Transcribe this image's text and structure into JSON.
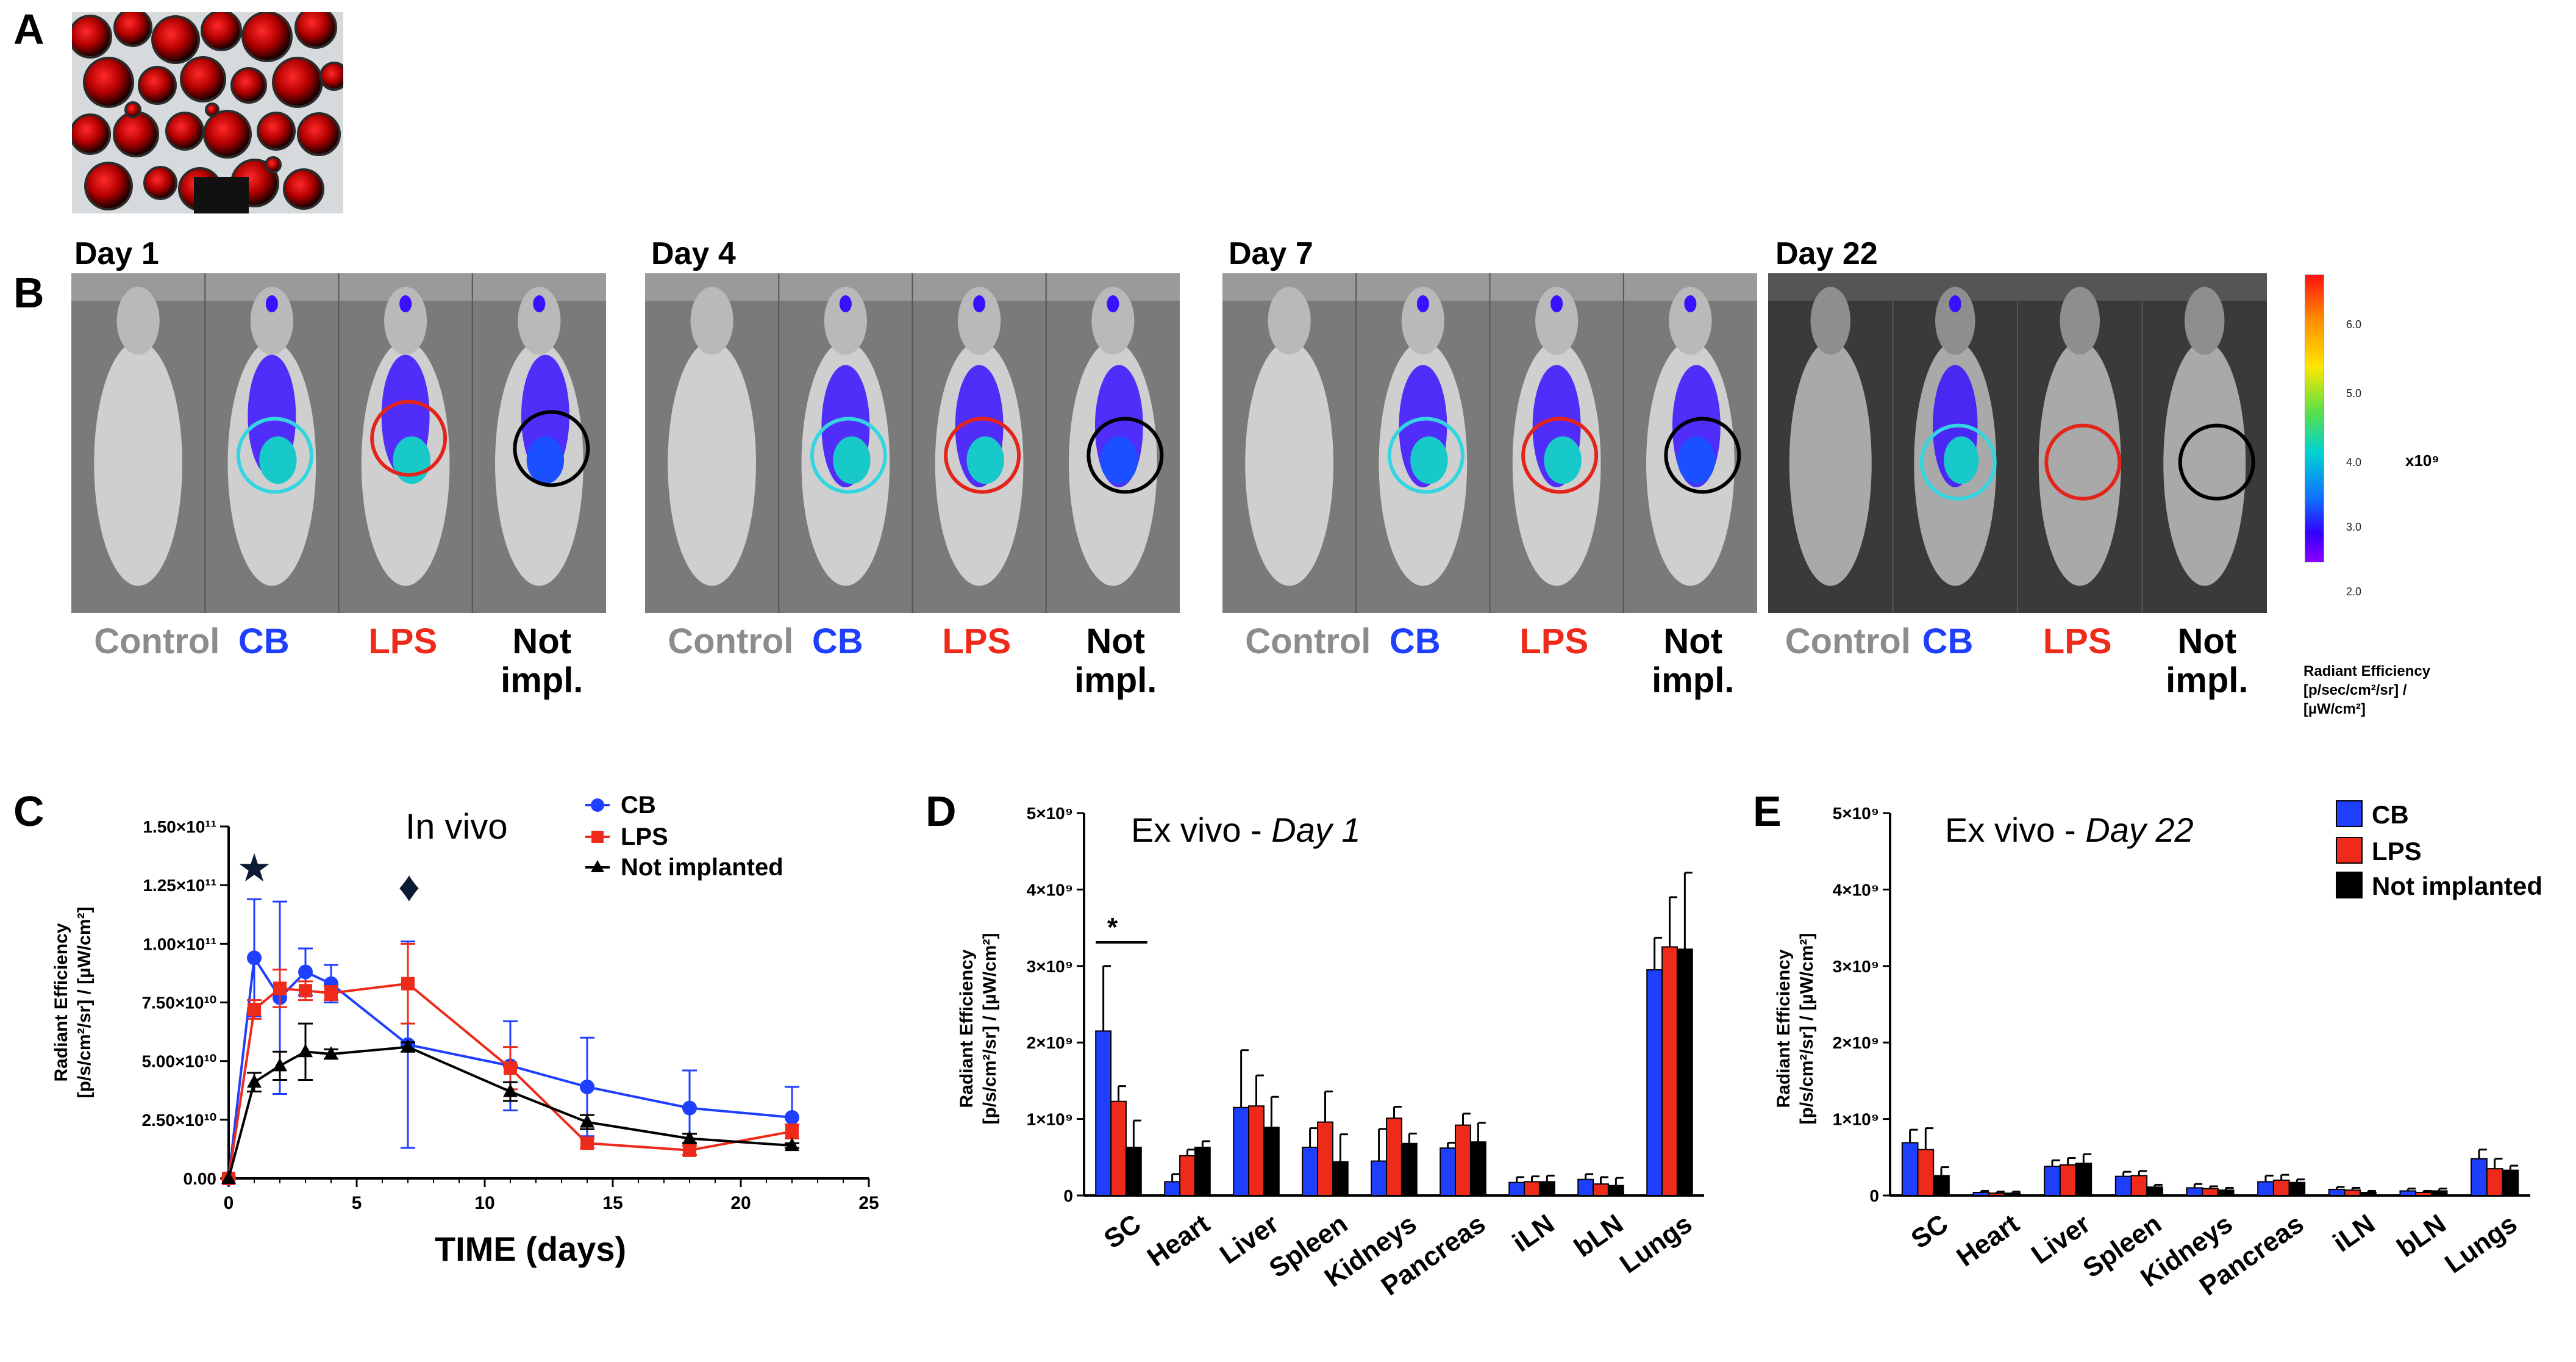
{
  "panel_letters": [
    "A",
    "B",
    "C",
    "D",
    "E"
  ],
  "days": [
    "Day 1",
    "Day 4",
    "Day 7",
    "Day 22"
  ],
  "group_labels": {
    "control": "Control",
    "cb": "CB",
    "lps": "LPS",
    "not_impl_1": "Not",
    "not_impl_2": "impl."
  },
  "colors": {
    "cb": "#1f3fff",
    "lps": "#ee2a1a",
    "not_impl": "#000000",
    "control": "#8c8c8c",
    "cyan_circle": "#33d6e0",
    "red_circle": "#e3241b",
    "black_circle": "#000000"
  },
  "colorbar": {
    "ticks": [
      "6.0",
      "5.0",
      "4.0",
      "3.0",
      "2.0"
    ],
    "multiplier": "x10⁹",
    "title_lines": [
      "Radiant Efficiency",
      "[p/sec/cm²/sr] /",
      "[µW/cm²]"
    ]
  },
  "chart_data": [
    {
      "id": "C",
      "type": "line",
      "title": "In vivo",
      "xlabel": "TIME (days)",
      "ylabel_lines": [
        "Radiant Efficiency",
        "[p/s/cm²/sr] / [µW/cm²]"
      ],
      "xlim": [
        0,
        25
      ],
      "ylim": [
        0,
        150000000000
      ],
      "x_ticks": [
        "0",
        "5",
        "10",
        "15",
        "20",
        "25"
      ],
      "y_ticks": [
        "0.00",
        "2.50×10¹⁰",
        "5.00×10¹⁰",
        "7.50×10¹⁰",
        "1.00×10¹¹",
        "1.25×10¹¹",
        "1.50×10¹¹"
      ],
      "series": [
        {
          "name": "CB",
          "x": [
            0,
            1,
            2,
            3,
            4,
            7,
            11,
            14,
            18,
            22
          ],
          "y": [
            0,
            94000000000,
            77000000000,
            88000000000,
            83000000000,
            57000000000,
            48000000000,
            39000000000,
            30000000000,
            26000000000
          ],
          "err": [
            0,
            25000000000,
            41000000000,
            10000000000,
            8000000000,
            44000000000,
            19000000000,
            21000000000,
            16000000000,
            13000000000
          ]
        },
        {
          "name": "LPS",
          "x": [
            0,
            1,
            2,
            3,
            4,
            7,
            11,
            14,
            18,
            22
          ],
          "y": [
            0,
            72000000000,
            81000000000,
            80000000000,
            79000000000,
            83000000000,
            47000000000,
            15000000000,
            12000000000,
            20000000000
          ],
          "err": [
            0,
            4000000000,
            8000000000,
            4000000000,
            3000000000,
            17000000000,
            9000000000,
            2000000000,
            2000000000,
            3000000000
          ]
        },
        {
          "name": "Not implanted",
          "x": [
            0,
            1,
            2,
            3,
            4,
            7,
            11,
            14,
            18,
            22
          ],
          "y": [
            0,
            41000000000,
            48000000000,
            54000000000,
            53000000000,
            56000000000,
            37000000000,
            24000000000,
            17000000000,
            14000000000
          ],
          "err": [
            0,
            4000000000,
            6000000000,
            12000000000,
            2000000000,
            2000000000,
            4000000000,
            3000000000,
            2000000000,
            1000000000
          ]
        }
      ],
      "legend": [
        "CB",
        "LPS",
        "Not implanted"
      ],
      "annotations": [
        {
          "symbol": "★",
          "x": 1
        },
        {
          "symbol": "♦",
          "x": 7
        }
      ]
    },
    {
      "id": "D",
      "type": "bar",
      "title_prefix": "Ex vivo - ",
      "title_emph": "Day 1",
      "ylabel_lines": [
        "Radiant Efficiency",
        "[p/s/cm²/sr] / [µW/cm²]"
      ],
      "ylim": [
        0,
        5000000000
      ],
      "y_ticks": [
        "5×10⁹",
        "4×10⁹",
        "3×10⁹",
        "2×10⁹",
        "1×10⁹",
        "0"
      ],
      "categories": [
        "SC",
        "Heart",
        "Liver",
        "Spleen",
        "Kidneys",
        "Pancreas",
        "iLN",
        "bLN",
        "Lungs"
      ],
      "series": [
        {
          "name": "CB",
          "values": [
            2150000000,
            180000000,
            1150000000,
            630000000,
            450000000,
            620000000,
            170000000,
            210000000,
            2950000000
          ],
          "err": [
            850000000,
            100000000,
            750000000,
            250000000,
            420000000,
            70000000,
            70000000,
            70000000,
            420000000
          ]
        },
        {
          "name": "LPS",
          "values": [
            1230000000,
            520000000,
            1170000000,
            960000000,
            1010000000,
            920000000,
            180000000,
            150000000,
            3250000000
          ],
          "err": [
            200000000,
            80000000,
            400000000,
            400000000,
            150000000,
            150000000,
            70000000,
            90000000,
            650000000
          ]
        },
        {
          "name": "Not implanted",
          "values": [
            630000000,
            630000000,
            890000000,
            440000000,
            680000000,
            700000000,
            180000000,
            130000000,
            3220000000
          ],
          "err": [
            350000000,
            80000000,
            400000000,
            360000000,
            130000000,
            250000000,
            80000000,
            100000000,
            1000000000
          ]
        }
      ],
      "significance": "*"
    },
    {
      "id": "E",
      "type": "bar",
      "title_prefix": "Ex vivo - ",
      "title_emph": "Day 22",
      "ylabel_lines": [
        "Radiant Efficiency",
        "[p/s/cm²/sr] / [µW/cm²]"
      ],
      "ylim": [
        0,
        5000000000
      ],
      "y_ticks": [
        "5×10⁹",
        "4×10⁹",
        "3×10⁹",
        "2×10⁹",
        "1×10⁹",
        "0"
      ],
      "categories": [
        "SC",
        "Heart",
        "Liver",
        "Spleen",
        "Kidneys",
        "Pancreas",
        "iLN",
        "bLN",
        "Lungs"
      ],
      "series": [
        {
          "name": "CB",
          "values": [
            690000000,
            40000000,
            380000000,
            250000000,
            100000000,
            180000000,
            80000000,
            60000000,
            480000000
          ],
          "err": [
            170000000,
            20000000,
            80000000,
            60000000,
            50000000,
            80000000,
            30000000,
            30000000,
            120000000
          ]
        },
        {
          "name": "LPS",
          "values": [
            600000000,
            30000000,
            400000000,
            260000000,
            90000000,
            200000000,
            70000000,
            40000000,
            350000000
          ],
          "err": [
            280000000,
            20000000,
            90000000,
            60000000,
            30000000,
            70000000,
            30000000,
            20000000,
            130000000
          ]
        },
        {
          "name": "Not implanted",
          "values": [
            260000000,
            30000000,
            420000000,
            110000000,
            70000000,
            170000000,
            40000000,
            60000000,
            330000000
          ],
          "err": [
            110000000,
            20000000,
            120000000,
            30000000,
            30000000,
            40000000,
            20000000,
            30000000,
            60000000
          ]
        }
      ],
      "legend": [
        "CB",
        "LPS",
        "Not implanted"
      ]
    }
  ]
}
